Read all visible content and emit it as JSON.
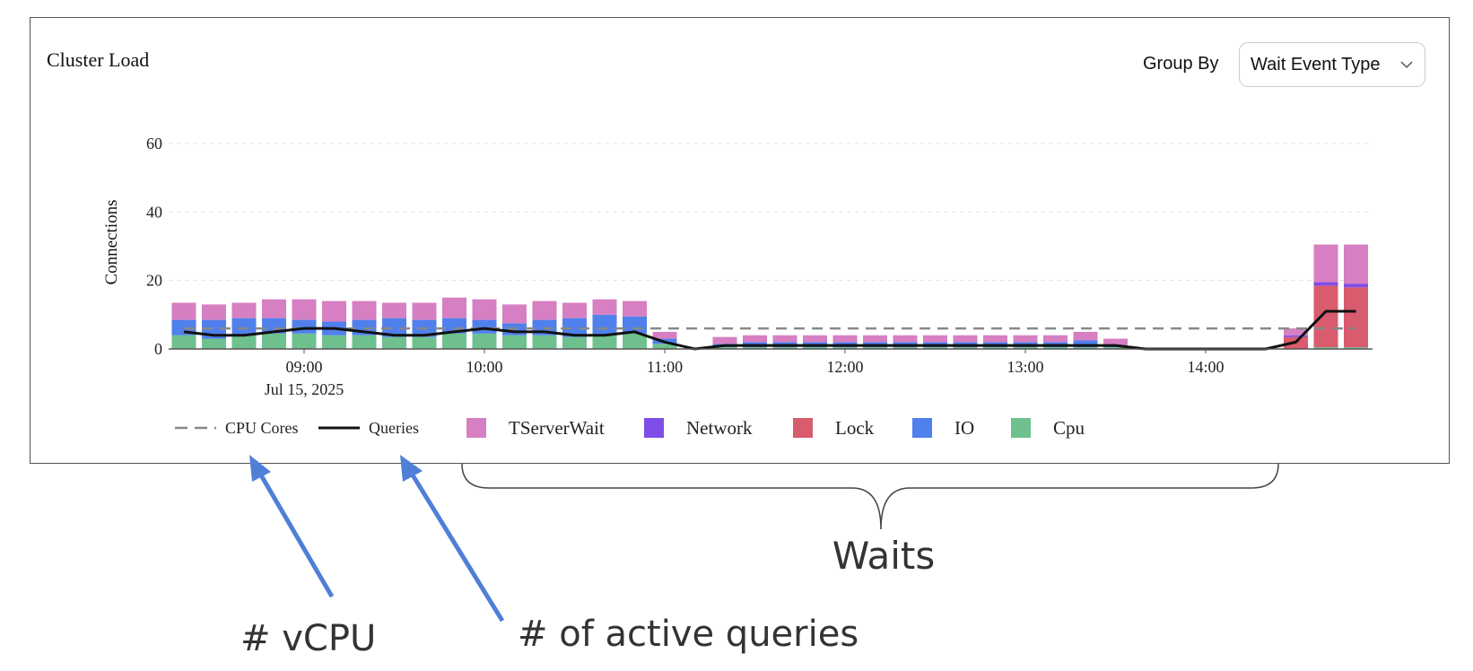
{
  "panel": {
    "title": "Cluster Load",
    "group_by_label": "Group By",
    "group_by_value": "Wait Event Type"
  },
  "chart_data": {
    "type": "bar",
    "ylabel": "Connections",
    "xlabel": "",
    "ylim": [
      0,
      60
    ],
    "yticks": [
      0,
      20,
      40,
      60
    ],
    "xticks": [
      "09:00",
      "10:00",
      "11:00",
      "12:00",
      "13:00",
      "14:00"
    ],
    "x_date_label": "Jul 15, 2025",
    "grid": true,
    "legend_position": "bottom",
    "x": [
      "08:20",
      "08:30",
      "08:40",
      "08:50",
      "09:00",
      "09:10",
      "09:20",
      "09:30",
      "09:40",
      "09:50",
      "10:00",
      "10:10",
      "10:20",
      "10:30",
      "10:40",
      "10:50",
      "11:00",
      "11:10",
      "11:20",
      "11:30",
      "11:40",
      "11:50",
      "12:00",
      "12:10",
      "12:20",
      "12:30",
      "12:40",
      "12:50",
      "13:00",
      "13:10",
      "13:20",
      "13:30",
      "13:40",
      "13:50",
      "14:00",
      "14:10",
      "14:20",
      "14:30",
      "14:40",
      "14:50"
    ],
    "series": [
      {
        "name": "Cpu",
        "color": "#6ec18e",
        "values": [
          4,
          3,
          4,
          4.5,
          4.5,
          4,
          4,
          3.5,
          3.5,
          4.5,
          4.5,
          4,
          4,
          3.5,
          4,
          4.5,
          1.5,
          0,
          0.5,
          0.5,
          0.5,
          0.5,
          0.5,
          0.5,
          0.5,
          0.5,
          0.5,
          0.5,
          0.5,
          0.5,
          0.5,
          0.5,
          0,
          0,
          0,
          0,
          0,
          0,
          0.5,
          0.5
        ]
      },
      {
        "name": "IO",
        "color": "#4f80ec",
        "values": [
          4.5,
          5.5,
          5,
          4.5,
          4,
          4,
          4.5,
          5.5,
          5,
          4.5,
          4,
          3.5,
          4.5,
          5.5,
          6,
          5,
          1.5,
          0,
          1,
          1.5,
          1.5,
          1.5,
          1.5,
          1.5,
          1.5,
          1.5,
          1.5,
          1.5,
          1.5,
          1.5,
          2,
          0.5,
          0,
          0,
          0,
          0,
          0,
          0,
          0,
          0
        ]
      },
      {
        "name": "Lock",
        "color": "#d95b6e",
        "values": [
          0,
          0,
          0,
          0,
          0,
          0,
          0,
          0,
          0,
          0,
          0,
          0,
          0,
          0,
          0,
          0,
          0,
          0,
          0,
          0,
          0,
          0,
          0,
          0,
          0,
          0,
          0,
          0,
          0,
          0,
          0,
          0,
          0,
          0,
          0,
          0,
          0,
          3.5,
          18,
          17.5
        ]
      },
      {
        "name": "Network",
        "color": "#7f4de8",
        "values": [
          0,
          0,
          0,
          0,
          0,
          0,
          0,
          0,
          0,
          0,
          0,
          0,
          0,
          0,
          0,
          0,
          0,
          0,
          0,
          0,
          0,
          0,
          0,
          0,
          0,
          0,
          0,
          0,
          0,
          0,
          0,
          0,
          0,
          0,
          0,
          0,
          0,
          0.5,
          1,
          1
        ]
      },
      {
        "name": "TServerWait",
        "color": "#d77fc3",
        "values": [
          5,
          4.5,
          4.5,
          5.5,
          6,
          6,
          5.5,
          4.5,
          5,
          6,
          6,
          5.5,
          5.5,
          4.5,
          4.5,
          4.5,
          2,
          0,
          2,
          2,
          2,
          2,
          2,
          2,
          2,
          2,
          2,
          2,
          2,
          2,
          2.5,
          2,
          0,
          0,
          0,
          0,
          0,
          2,
          11,
          11.5
        ]
      }
    ],
    "lines": [
      {
        "name": "CPU Cores",
        "style": "dashed",
        "color": "#888888",
        "values": [
          6,
          6,
          6,
          6,
          6,
          6,
          6,
          6,
          6,
          6,
          6,
          6,
          6,
          6,
          6,
          6,
          6,
          6,
          6,
          6,
          6,
          6,
          6,
          6,
          6,
          6,
          6,
          6,
          6,
          6,
          6,
          6,
          6,
          6,
          6,
          6,
          6,
          6,
          6,
          6
        ]
      },
      {
        "name": "Queries",
        "style": "solid",
        "color": "#111111",
        "values": [
          5,
          4,
          4,
          5,
          6,
          6,
          5,
          4,
          4,
          5,
          6,
          5,
          5,
          4,
          4,
          5,
          2,
          0,
          1,
          1,
          1,
          1,
          1,
          1,
          1,
          1,
          1,
          1,
          1,
          1,
          1,
          1,
          0,
          0,
          0,
          0,
          0,
          2,
          11,
          11
        ]
      }
    ]
  },
  "annotations": {
    "brace_label": "Waits",
    "vcpu_label": "# vCPU",
    "queries_label": "# of active queries",
    "arrow_color": "#4f7fd6"
  }
}
